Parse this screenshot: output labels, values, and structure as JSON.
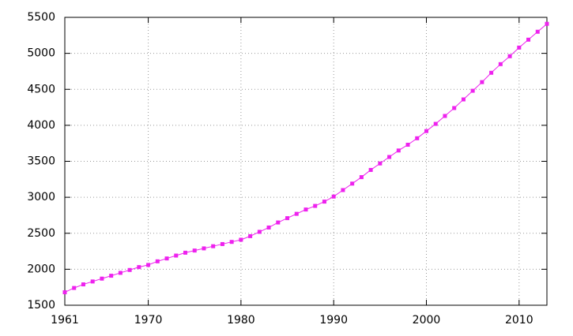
{
  "chart_data": {
    "type": "line",
    "x": [
      1961,
      1962,
      1963,
      1964,
      1965,
      1966,
      1967,
      1968,
      1969,
      1970,
      1971,
      1972,
      1973,
      1974,
      1975,
      1976,
      1977,
      1978,
      1979,
      1980,
      1981,
      1982,
      1983,
      1984,
      1985,
      1986,
      1987,
      1988,
      1989,
      1990,
      1991,
      1992,
      1993,
      1994,
      1995,
      1996,
      1997,
      1998,
      1999,
      2000,
      2001,
      2002,
      2003,
      2004,
      2005,
      2006,
      2007,
      2008,
      2009,
      2010,
      2011,
      2012,
      2013
    ],
    "values": [
      1680,
      1740,
      1790,
      1830,
      1870,
      1910,
      1950,
      1990,
      2030,
      2060,
      2110,
      2150,
      2190,
      2230,
      2260,
      2290,
      2320,
      2350,
      2380,
      2410,
      2460,
      2520,
      2580,
      2650,
      2710,
      2770,
      2830,
      2880,
      2940,
      3010,
      3100,
      3190,
      3280,
      3380,
      3470,
      3560,
      3650,
      3730,
      3820,
      3920,
      4020,
      4130,
      4240,
      4360,
      4480,
      4600,
      4730,
      4850,
      4960,
      5080,
      5190,
      5300,
      5410
    ],
    "color": "#ee22ee",
    "xlim": [
      1961,
      2013
    ],
    "xticks": [
      1961,
      1970,
      1980,
      1990,
      2000,
      2010
    ],
    "ylim": [
      1500,
      5500
    ],
    "yticks": [
      1500,
      2000,
      2500,
      3000,
      3500,
      4000,
      4500,
      5000,
      5500
    ],
    "grid": true
  }
}
